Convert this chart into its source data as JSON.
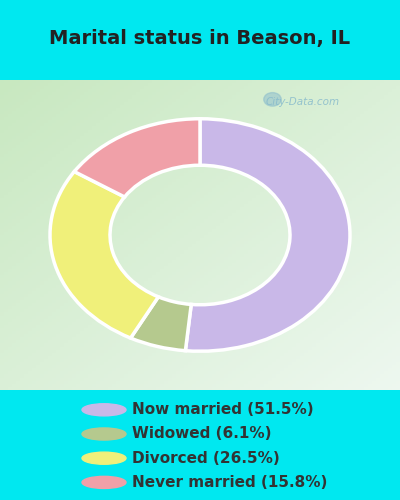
{
  "title": "Marital status in Beason, IL",
  "slices": [
    51.5,
    6.1,
    26.5,
    15.8
  ],
  "labels": [
    "Now married (51.5%)",
    "Widowed (6.1%)",
    "Divorced (26.5%)",
    "Never married (15.8%)"
  ],
  "colors": [
    "#c9b8e8",
    "#b5c98e",
    "#f0f07a",
    "#f0a0a8"
  ],
  "bg_cyan": "#00e8f0",
  "chart_bg_tl": "#c8e8c0",
  "chart_bg_br": "#e8f8f0",
  "title_fontsize": 14,
  "legend_fontsize": 11,
  "watermark": "City-Data.com",
  "start_angle": 90,
  "donut_outer_r": 1.2,
  "donut_inner_r": 0.72,
  "title_color": "#222222"
}
